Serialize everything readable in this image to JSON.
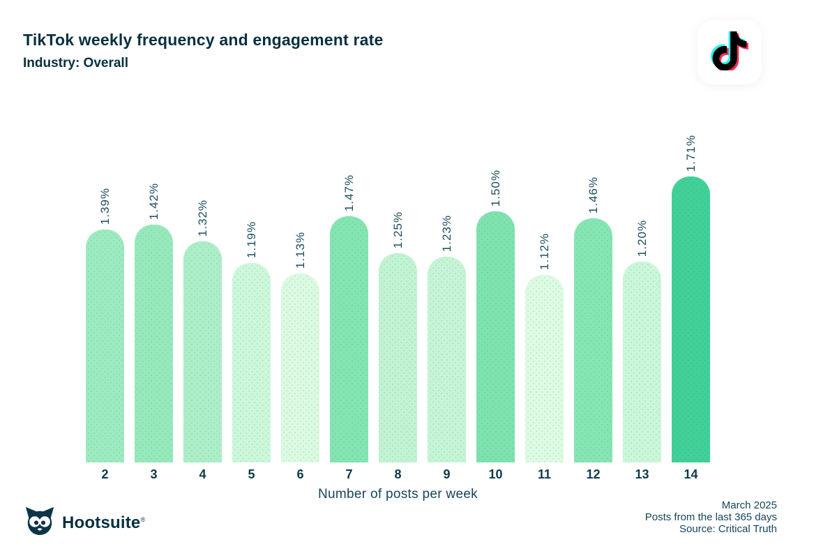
{
  "header": {
    "logo": "tiktok-icon"
  },
  "chart_data": {
    "type": "bar",
    "title": "TikTok weekly frequency and engagement rate",
    "subtitle": "Industry: Overall",
    "xlabel": "Number of posts per week",
    "ylabel": "",
    "categories": [
      "2",
      "3",
      "4",
      "5",
      "6",
      "7",
      "8",
      "9",
      "10",
      "11",
      "12",
      "13",
      "14"
    ],
    "values": [
      1.39,
      1.42,
      1.32,
      1.19,
      1.13,
      1.47,
      1.25,
      1.23,
      1.5,
      1.12,
      1.46,
      1.2,
      1.71
    ],
    "labels": [
      "1.39%",
      "1.42%",
      "1.32%",
      "1.19%",
      "1.13%",
      "1.47%",
      "1.25%",
      "1.23%",
      "1.50%",
      "1.12%",
      "1.46%",
      "1.20%",
      "1.71%"
    ],
    "bar_colors": [
      "#9deac0",
      "#97e9bc",
      "#adeec8",
      "#cdf7db",
      "#dbfae1",
      "#84e4b2",
      "#c2f3d3",
      "#c6f4d6",
      "#7ee2ae",
      "#ddfbe3",
      "#87e5b4",
      "#cbf6d9",
      "#41d098"
    ],
    "ylim": [
      0,
      1.75
    ],
    "grid": false,
    "legend": "none",
    "bar_corner": "rounded-top",
    "value_label_rotation": -90
  },
  "footer": {
    "brand": "Hootsuite",
    "brand_reg": "®",
    "date": "March 2025",
    "range": "Posts from the last 365 days",
    "source": "Source: Critical Truth"
  },
  "colors": {
    "ink": "#06303f",
    "tick-ink": "#0d3a4a",
    "label-ink": "#1d4d5f",
    "soft-ink": "#16455a",
    "tiktok-cyan": "#25f4ee",
    "tiktok-pink": "#fe2c55",
    "tiktok-black": "#010101",
    "bar-max": "#41d098",
    "bar-min": "#ddfbe3"
  }
}
